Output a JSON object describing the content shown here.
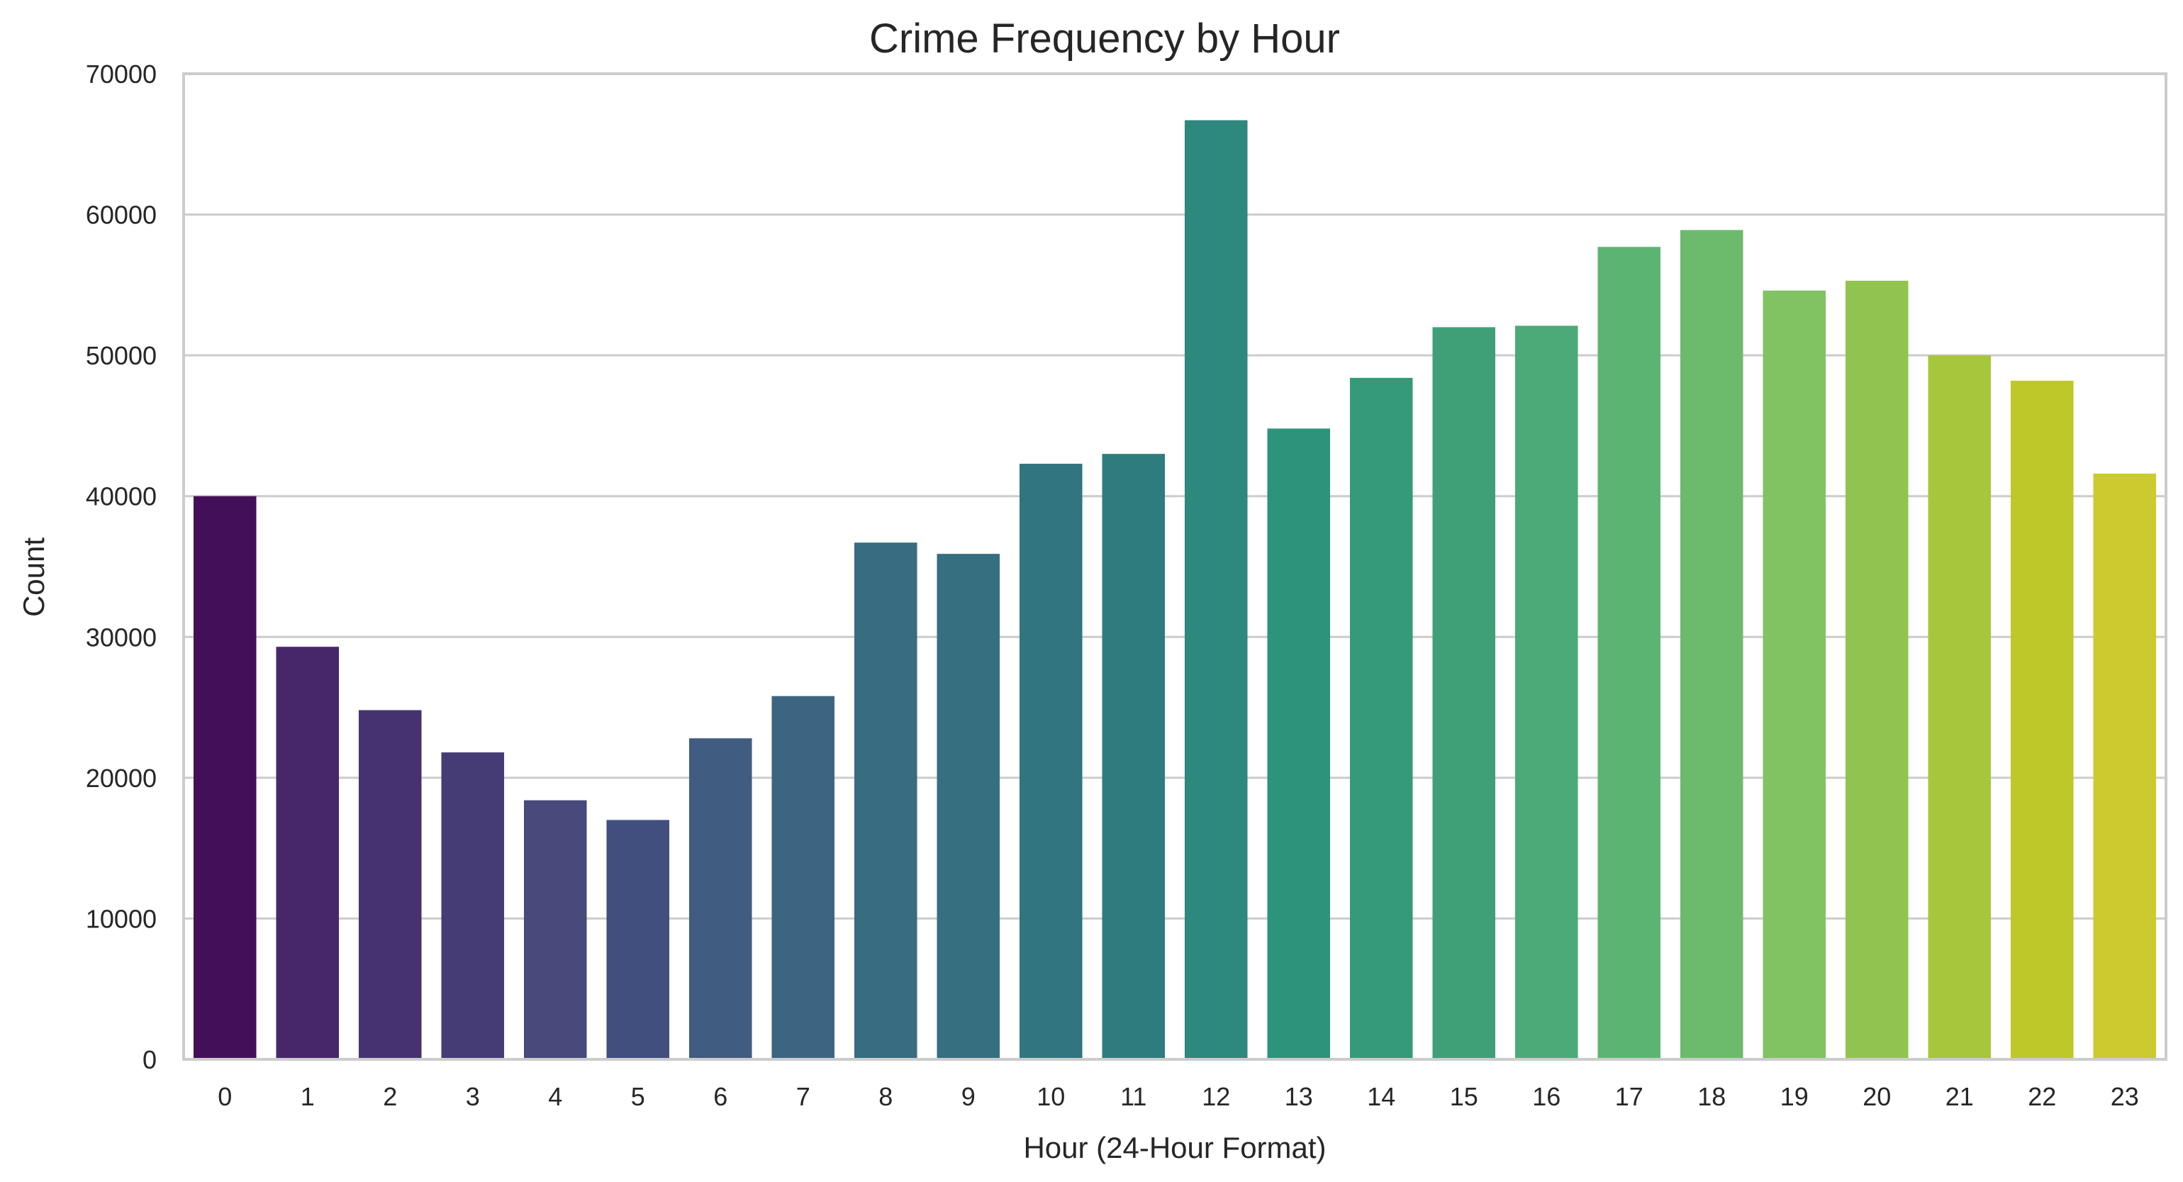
{
  "chart_data": {
    "type": "bar",
    "title": "Crime Frequency by Hour",
    "xlabel": "Hour (24-Hour Format)",
    "ylabel": "Count",
    "categories": [
      "0",
      "1",
      "2",
      "3",
      "4",
      "5",
      "6",
      "7",
      "8",
      "9",
      "10",
      "11",
      "12",
      "13",
      "14",
      "15",
      "16",
      "17",
      "18",
      "19",
      "20",
      "21",
      "22",
      "23"
    ],
    "values": [
      40000,
      29300,
      24800,
      21800,
      18400,
      17000,
      22800,
      25800,
      36700,
      35900,
      42300,
      43000,
      66700,
      44800,
      48400,
      52000,
      52100,
      57700,
      58900,
      54600,
      55300,
      50000,
      48200,
      41600
    ],
    "colors": [
      "#440f59",
      "#47276a",
      "#463270",
      "#453c76",
      "#474a7a",
      "#404f7e",
      "#405c80",
      "#3c6582",
      "#376c81",
      "#356f80",
      "#307580",
      "#2f7c7f",
      "#2d887d",
      "#2c947a",
      "#349a7a",
      "#3fa078",
      "#4baa78",
      "#5cb473",
      "#6cbb6c",
      "#81c263",
      "#91c44e",
      "#a6c63c",
      "#bec829",
      "#cbca2f"
    ],
    "ylim": [
      0,
      70000
    ],
    "yticks": [
      "0",
      "10000",
      "20000",
      "30000",
      "40000",
      "50000",
      "60000",
      "70000"
    ],
    "grid": "horizontal",
    "legend": "none"
  }
}
